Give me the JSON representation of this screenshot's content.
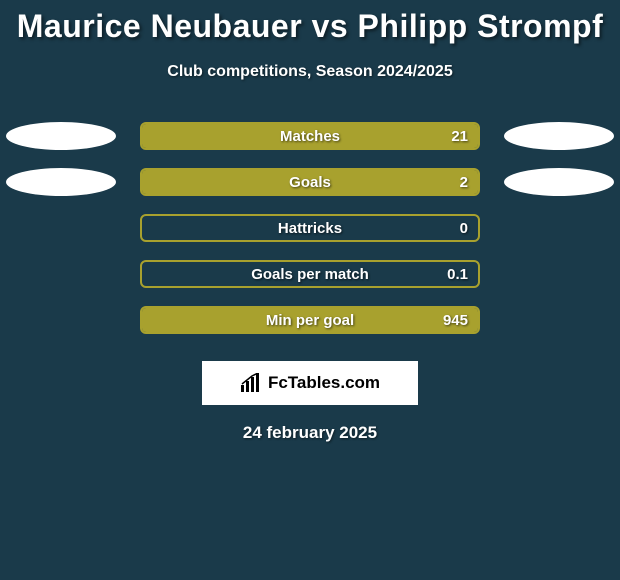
{
  "title": "Maurice Neubauer vs Philipp Strompf",
  "subtitle": "Club competitions, Season 2024/2025",
  "date": "24 february 2025",
  "brand": "FcTables.com",
  "colors": {
    "background": "#1a3a4a",
    "bar_fill": "#a8a12e",
    "bar_border": "#a8a12e",
    "ellipse": "#ffffff",
    "text": "#ffffff",
    "brand_bg": "#ffffff",
    "brand_text": "#000000"
  },
  "chart": {
    "bar_track_width": 340,
    "bar_track_height": 28,
    "border_radius": 6,
    "label_fontsize": 15
  },
  "rows": [
    {
      "label": "Matches",
      "value": "21",
      "fill_pct": 100,
      "show_ellipses": true
    },
    {
      "label": "Goals",
      "value": "2",
      "fill_pct": 100,
      "show_ellipses": true
    },
    {
      "label": "Hattricks",
      "value": "0",
      "fill_pct": 0,
      "show_ellipses": false
    },
    {
      "label": "Goals per match",
      "value": "0.1",
      "fill_pct": 0,
      "show_ellipses": false
    },
    {
      "label": "Min per goal",
      "value": "945",
      "fill_pct": 100,
      "show_ellipses": false
    }
  ]
}
